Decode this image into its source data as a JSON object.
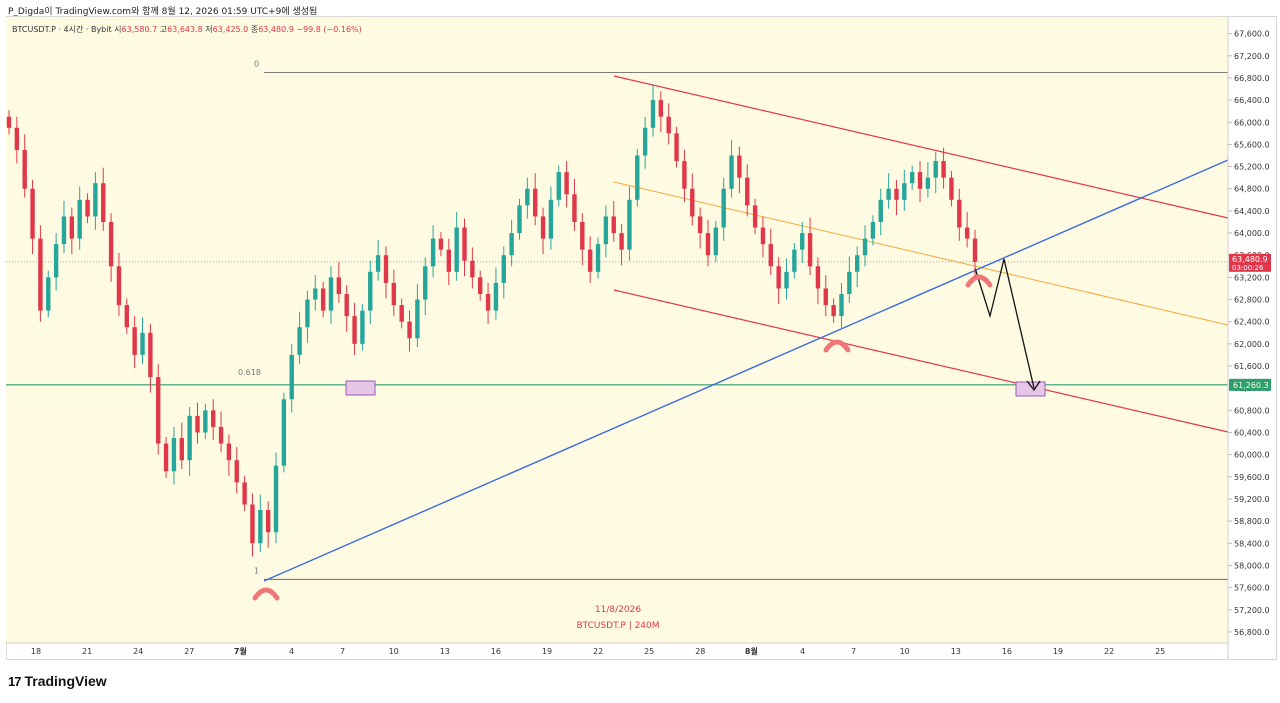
{
  "header": {
    "credit": "P_Digda이 TradingView.com와 함께 8월 12, 2026 01:59 UTC+9에 생성됨"
  },
  "symbol": {
    "name": "BTCUSDT.P · 4시간 · Bybit",
    "open_label": "시",
    "open": "63,580.7",
    "high_label": "고",
    "high": "63,643.8",
    "low_label": "저",
    "low": "63,425.0",
    "close_label": "종",
    "close": "63,480.9",
    "change": "−99.8 (−0.16%)"
  },
  "brand": {
    "logo": "17",
    "name": "TradingView"
  },
  "colors": {
    "up": "#26a69a",
    "down": "#e0384a",
    "background": "#fffbe3",
    "channel": "#e0384a",
    "trendline": "#3b6be0",
    "midline": "#f2a93b",
    "support": "#2e9e6b",
    "box": "#e6c6e6"
  },
  "chart_data": {
    "type": "candlestick",
    "symbol": "BTCUSDT.P",
    "timeframe": "4시간",
    "exchange": "Bybit",
    "ylim": [
      56600,
      67900
    ],
    "y_ticks": [
      "67,600.0",
      "67,200.0",
      "66,800.0",
      "66,400.0",
      "66,000.0",
      "65,600.0",
      "65,200.0",
      "64,800.0",
      "64,400.0",
      "64,000.0",
      "63,600.0",
      "63,200.0",
      "62,800.0",
      "62,400.0",
      "62,000.0",
      "61,600.0",
      "61,200.0",
      "60,800.0",
      "60,400.0",
      "60,000.0",
      "59,600.0",
      "59,200.0",
      "58,800.0",
      "58,400.0",
      "58,000.0",
      "57,600.0",
      "57,200.0",
      "56,800.0"
    ],
    "x_ticks": [
      "18",
      "21",
      "24",
      "27",
      "7월",
      "4",
      "7",
      "10",
      "13",
      "16",
      "19",
      "22",
      "25",
      "28",
      "8월",
      "4",
      "7",
      "10",
      "13",
      "16",
      "19",
      "22",
      "25"
    ],
    "price_label": {
      "value": "63,480.9",
      "countdown": "03:00:26"
    },
    "support_label": "61,260.3",
    "support_level": 61260.3,
    "fib_levels": [
      {
        "label": "0",
        "price": 66900
      },
      {
        "label": "0.618",
        "price": 61330
      },
      {
        "label": "1",
        "price": 57750
      }
    ],
    "watermark_date": "11/8/2026",
    "watermark_symbol": "BTCUSDT.P | 240M",
    "closes": [
      65900,
      65500,
      64800,
      63900,
      62600,
      63200,
      63800,
      64300,
      63900,
      64600,
      64300,
      64900,
      64200,
      63400,
      62700,
      62300,
      61800,
      62200,
      61400,
      60200,
      59700,
      60300,
      59900,
      60700,
      60400,
      60800,
      60500,
      60200,
      59900,
      59500,
      59100,
      58400,
      59000,
      58600,
      59800,
      61000,
      61800,
      62300,
      62800,
      63000,
      62600,
      63200,
      62900,
      62500,
      62000,
      62600,
      63300,
      63600,
      63100,
      62700,
      62400,
      62100,
      62800,
      63400,
      63900,
      63700,
      63300,
      64100,
      63500,
      63200,
      62900,
      62600,
      63100,
      63600,
      64000,
      64500,
      64800,
      64300,
      63900,
      64600,
      65100,
      64700,
      64200,
      63700,
      63300,
      63800,
      64300,
      64000,
      63700,
      64600,
      65400,
      65900,
      66400,
      66100,
      65800,
      65300,
      64800,
      64300,
      64000,
      63600,
      64100,
      64800,
      65400,
      65000,
      64500,
      64100,
      63800,
      63400,
      63000,
      63300,
      63700,
      64000,
      63400,
      63000,
      62700,
      62500,
      62900,
      63300,
      63600,
      63900,
      64200,
      64600,
      64800,
      64600,
      64900,
      65100,
      64800,
      65000,
      65300,
      65000,
      64600,
      64100,
      63900,
      63480.9
    ]
  }
}
